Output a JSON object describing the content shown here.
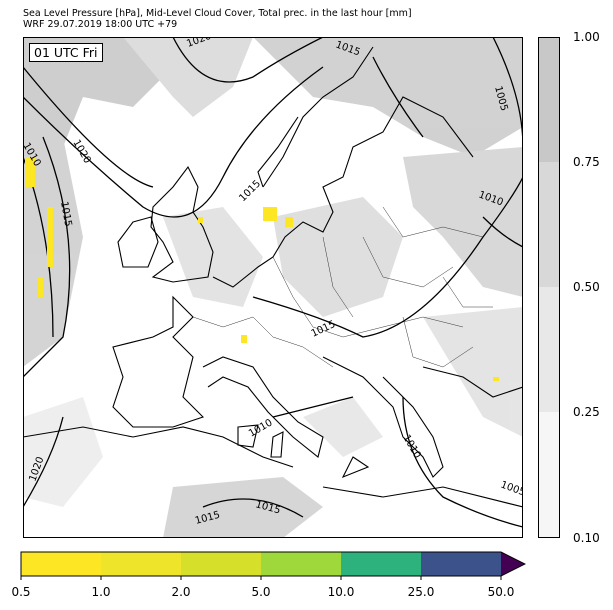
{
  "header": {
    "line1": "Sea Level Pressure [hPa], Mid-Level Cloud Cover, Total prec. in the last hour [mm]",
    "line2": "WRF 29.07.2019 18:00 UTC +79"
  },
  "map": {
    "time_label": "01 UTC Fri",
    "isobar_labels": [
      "1020",
      "1015",
      "1005",
      "1010",
      "1020",
      "1010",
      "1015",
      "1015",
      "1010",
      "1015",
      "1010",
      "1015",
      "1005",
      "1010",
      "1020",
      "1015"
    ]
  },
  "cloud_colorbar": {
    "ticks": [
      "1.00",
      "0.75",
      "0.50",
      "0.25",
      "0.10"
    ],
    "colors": [
      "#c8c8c8",
      "#d8d8d8",
      "#e8e8e8",
      "#f6f6f6"
    ]
  },
  "precip_colorbar": {
    "ticks": [
      "0.5",
      "1.0",
      "2.0",
      "5.0",
      "10.0",
      "25.0",
      "50.0"
    ],
    "colors": [
      "#fde725",
      "#eee52a",
      "#d6e02b",
      "#9fd83b",
      "#48c16e",
      "#2db27d",
      "#35608d",
      "#3b528b",
      "#440154"
    ]
  }
}
